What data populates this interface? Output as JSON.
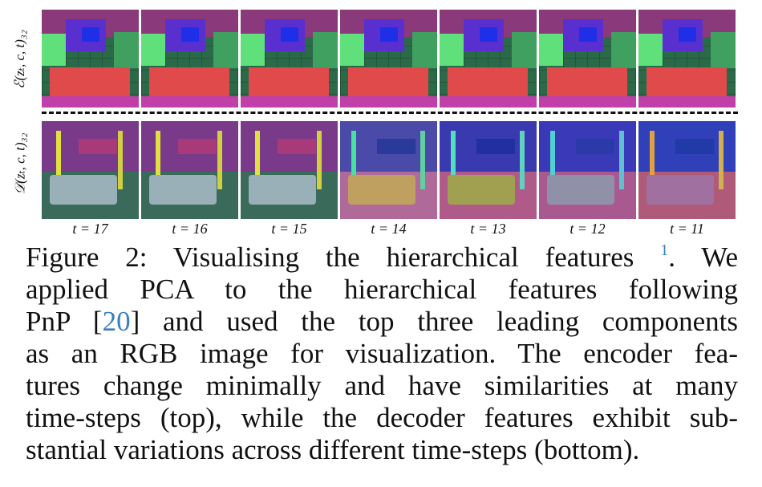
{
  "figure": {
    "row_labels": {
      "encoder": "ℰ(zₜ, c, t)₃₂",
      "decoder": "𝒟(zₜ, c, t)₃₂"
    },
    "timesteps": [
      "t = 17",
      "t = 16",
      "t = 15",
      "t = 14",
      "t = 13",
      "t = 12",
      "t = 11"
    ]
  },
  "caption": {
    "l1_a": "Figure 2: Visualising the hierarchical features ",
    "l1_sup": "1",
    "l1_b": ". We",
    "l2": "applied PCA to the hierarchical features following",
    "l3_a": "PnP [",
    "l3_cite": "20",
    "l3_b": "] and used the top three leading components",
    "l4": "as an RGB image for visualization. The encoder fea-",
    "l5": "tures change minimally and have similarities at many",
    "l6": "time-steps (top), while the decoder features exhibit sub-",
    "l7": "stantial variations across different time-steps (bottom)."
  },
  "colors": {
    "cite": "#3a7fc0"
  }
}
